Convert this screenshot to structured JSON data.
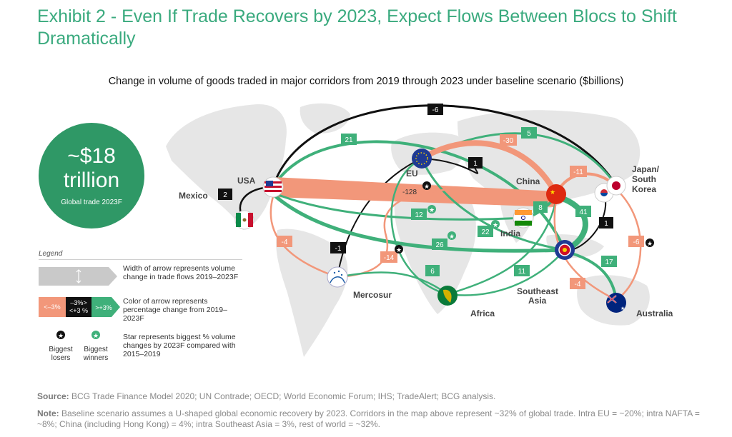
{
  "title": "Exhibit 2 - Even If Trade Recovers by 2023, Expect Flows Between Blocs to Shift Dramatically",
  "subtitle": "Change in volume of goods traded in major corridors from 2019 through 2023 under baseline scenario ($billions)",
  "summary": {
    "amount_line1": "~$18",
    "amount_line2": "trillion",
    "caption": "Global trade 2023F"
  },
  "regions": {
    "usa": "USA",
    "mexico": "Mexico",
    "eu": "EU",
    "china": "China",
    "india": "India",
    "japan_korea_1": "Japan/",
    "japan_korea_2": "South",
    "japan_korea_3": "Korea",
    "mercosur": "Mercosur",
    "africa": "Africa",
    "sea_1": "Southeast",
    "sea_2": "Asia",
    "australia": "Australia"
  },
  "corridors": [
    {
      "id": "usa-jk",
      "value": "-6",
      "color": "black"
    },
    {
      "id": "usa-sea",
      "value": "21",
      "color": "green"
    },
    {
      "id": "eu-jk",
      "value": "5",
      "color": "green"
    },
    {
      "id": "eu-china",
      "value": "-30",
      "color": "salmon"
    },
    {
      "id": "eu-mercosur",
      "value": "1",
      "color": "black"
    },
    {
      "id": "usa-mexico",
      "value": "2",
      "color": "black"
    },
    {
      "id": "usa-china",
      "value": "-128",
      "color": "salmon"
    },
    {
      "id": "china-jk",
      "value": "-11",
      "color": "salmon"
    },
    {
      "id": "usa-india",
      "value": "12",
      "color": "green"
    },
    {
      "id": "china-india",
      "value": "8",
      "color": "green"
    },
    {
      "id": "china-sea",
      "value": "41",
      "color": "green"
    },
    {
      "id": "eu-sea",
      "value": "22",
      "color": "green"
    },
    {
      "id": "usa-sea-2",
      "value": "26",
      "color": "green"
    },
    {
      "id": "jk-sea",
      "value": "1",
      "color": "black"
    },
    {
      "id": "jk-australia",
      "value": "-6",
      "color": "salmon"
    },
    {
      "id": "usa-mercosur",
      "value": "-4",
      "color": "salmon"
    },
    {
      "id": "eu-mercosur-2",
      "value": "-1",
      "color": "black"
    },
    {
      "id": "china-mercosur",
      "value": "-14",
      "color": "salmon"
    },
    {
      "id": "china-africa",
      "value": "6",
      "color": "green"
    },
    {
      "id": "eu-africa",
      "value": "11",
      "color": "green"
    },
    {
      "id": "sea-australia",
      "value": "17",
      "color": "green"
    },
    {
      "id": "china-australia",
      "value": "-4",
      "color": "salmon"
    }
  ],
  "legend": {
    "title": "Legend",
    "width_text": "Width of arrow represents volume change in trade flows 2019–2023F",
    "color_neg": "<–3%",
    "color_mid_1": "–3%>",
    "color_mid_2": "<+3 %",
    "color_pos": ">+3%",
    "color_text": "Color of arrow represents percentage change from 2019–2023F",
    "losers": "Biggest losers",
    "winners": "Biggest winners",
    "star_text": "Star represents biggest % volume changes by 2023F compared with 2015–2019"
  },
  "source_label": "Source:",
  "source": " BCG Trade Finance Model 2020; UN Contrade; OECD; World Economic Forum; IHS; TradeAlert; BCG analysis.",
  "note_label": "Note:",
  "note": " Baseline scenario assumes a U-shaped global economic recovery by 2023. Corridors in the map above represent ~32% of global trade. Intra EU = ~20%; intra NAFTA = ~8%; China (including Hong Kong) = 4%; intra Southeast Asia = 3%, rest of world = ~32%.",
  "colors": {
    "green": "#3fb07a",
    "salmon": "#f2977a",
    "black": "#111111",
    "dark_green": "#2f9866",
    "map": "#e6e6e6"
  }
}
